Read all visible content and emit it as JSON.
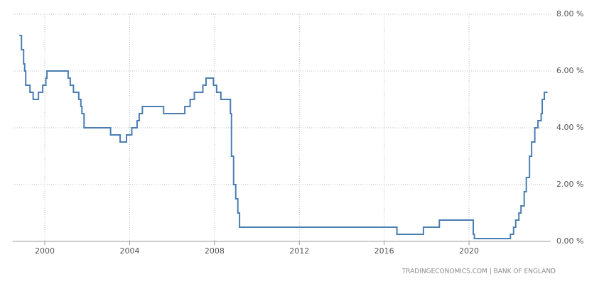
{
  "chart_data": {
    "type": "line",
    "source": "TRADINGECONOMICS.COM | BANK OF ENGLAND",
    "x": [
      1998.8,
      1998.9,
      1998.9,
      1999.0,
      1999.0,
      1999.05,
      1999.05,
      1999.1,
      1999.1,
      1999.3,
      1999.3,
      1999.45,
      1999.45,
      1999.7,
      1999.7,
      1999.9,
      1999.9,
      2000.05,
      2000.05,
      2000.1,
      2000.1,
      2001.1,
      2001.1,
      2001.2,
      2001.2,
      2001.35,
      2001.35,
      2001.6,
      2001.6,
      2001.7,
      2001.7,
      2001.75,
      2001.75,
      2001.85,
      2001.85,
      2003.1,
      2003.1,
      2003.55,
      2003.55,
      2003.85,
      2003.85,
      2004.1,
      2004.1,
      2004.35,
      2004.35,
      2004.45,
      2004.45,
      2004.6,
      2004.6,
      2005.6,
      2005.6,
      2006.6,
      2006.6,
      2006.85,
      2006.85,
      2007.05,
      2007.05,
      2007.45,
      2007.45,
      2007.6,
      2007.6,
      2007.95,
      2007.95,
      2008.1,
      2008.1,
      2008.3,
      2008.3,
      2008.75,
      2008.75,
      2008.8,
      2008.8,
      2008.9,
      2008.9,
      2009.0,
      2009.0,
      2009.1,
      2009.1,
      2009.18,
      2009.18,
      2016.6,
      2016.6,
      2017.85,
      2017.85,
      2018.6,
      2018.6,
      2020.2,
      2020.2,
      2020.25,
      2020.25,
      2021.95,
      2021.95,
      2022.1,
      2022.1,
      2022.2,
      2022.2,
      2022.35,
      2022.35,
      2022.45,
      2022.45,
      2022.6,
      2022.6,
      2022.7,
      2022.7,
      2022.85,
      2022.85,
      2022.95,
      2022.95,
      2023.1,
      2023.1,
      2023.25,
      2023.25,
      2023.4,
      2023.4,
      2023.45,
      2023.45,
      2023.55,
      2023.55,
      2023.7
    ],
    "series": [
      {
        "color": "#4a7eb3",
        "values": [
          7.25,
          7.25,
          6.75,
          6.75,
          6.25,
          6.25,
          6.0,
          6.0,
          5.5,
          5.5,
          5.25,
          5.25,
          5.0,
          5.0,
          5.25,
          5.25,
          5.5,
          5.5,
          5.75,
          5.75,
          6.0,
          6.0,
          5.75,
          5.75,
          5.5,
          5.5,
          5.25,
          5.25,
          5.0,
          5.0,
          4.75,
          4.75,
          4.5,
          4.5,
          4.0,
          4.0,
          3.75,
          3.75,
          3.5,
          3.5,
          3.75,
          3.75,
          4.0,
          4.0,
          4.25,
          4.25,
          4.5,
          4.5,
          4.75,
          4.75,
          4.5,
          4.5,
          4.75,
          4.75,
          5.0,
          5.0,
          5.25,
          5.25,
          5.5,
          5.5,
          5.75,
          5.75,
          5.5,
          5.5,
          5.25,
          5.25,
          5.0,
          5.0,
          4.5,
          4.5,
          3.0,
          3.0,
          2.0,
          2.0,
          1.5,
          1.5,
          1.0,
          1.0,
          0.5,
          0.5,
          0.25,
          0.25,
          0.5,
          0.5,
          0.75,
          0.75,
          0.25,
          0.25,
          0.1,
          0.1,
          0.25,
          0.25,
          0.5,
          0.5,
          0.75,
          0.75,
          1.0,
          1.0,
          1.25,
          1.25,
          1.75,
          1.75,
          2.25,
          2.25,
          3.0,
          3.0,
          3.5,
          3.5,
          4.0,
          4.0,
          4.25,
          4.25,
          4.5,
          4.5,
          5.0,
          5.0,
          5.25,
          5.25
        ]
      }
    ],
    "xlim": [
      1998.49,
      2023.85
    ],
    "xticks": [
      2000,
      2004,
      2008,
      2012,
      2016,
      2020
    ],
    "ylim": [
      0,
      8
    ],
    "yticks": [
      {
        "value": 0,
        "label": "0.00 %"
      },
      {
        "value": 2,
        "label": "2.00 %"
      },
      {
        "value": 4,
        "label": "4.00 %"
      },
      {
        "value": 6,
        "label": "6.00 %"
      },
      {
        "value": 8,
        "label": "8.00 %"
      }
    ],
    "grid": true
  }
}
